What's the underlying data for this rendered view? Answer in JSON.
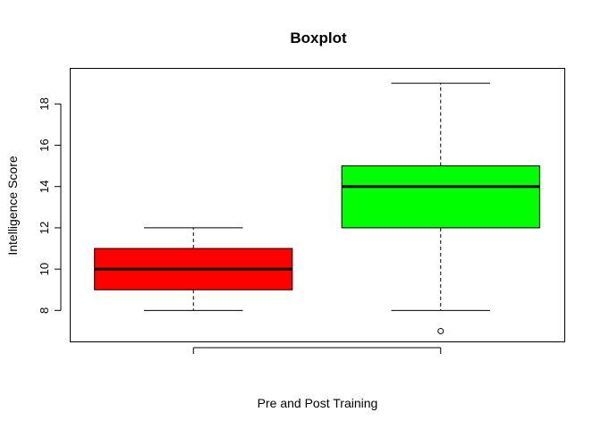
{
  "chart_data": {
    "type": "boxplot",
    "title": "Boxplot",
    "xlabel": "Pre and Post Training",
    "ylabel": "Intelligence Score",
    "ylim": [
      6.5,
      19.7
    ],
    "yticks": [
      8,
      10,
      12,
      14,
      16,
      18
    ],
    "ytick_labels": [
      "8",
      "10",
      "12",
      "14",
      "16",
      "18"
    ],
    "grid": false,
    "boxes": [
      {
        "whisker_low": 8,
        "q1": 9,
        "median": 10,
        "q3": 11,
        "whisker_high": 12,
        "outliers": [],
        "color": "#ff0000"
      },
      {
        "whisker_low": 8,
        "q1": 12,
        "median": 14,
        "q3": 15,
        "whisker_high": 19,
        "outliers": [
          7
        ],
        "color": "#00ff00"
      }
    ]
  }
}
